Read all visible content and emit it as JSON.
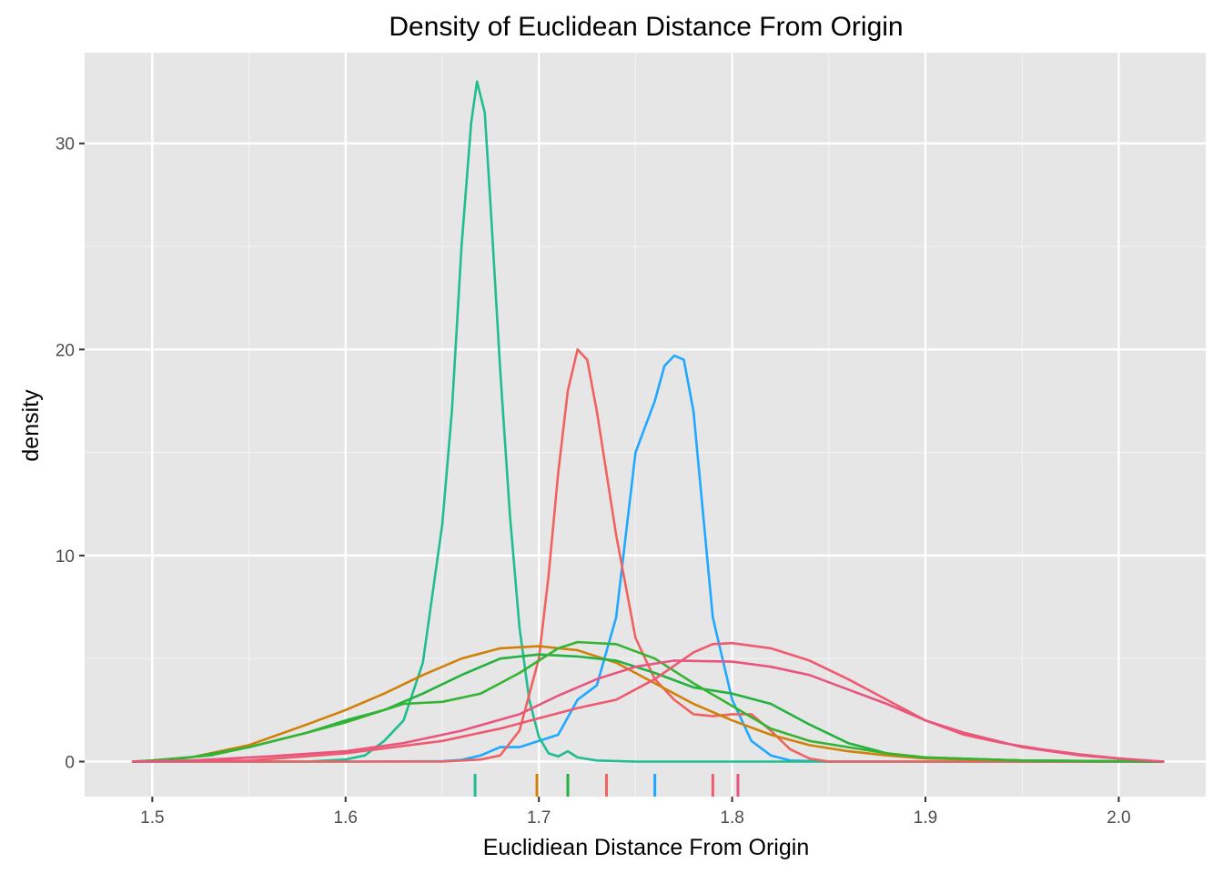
{
  "chart_data": {
    "type": "line",
    "title": "Density of Euclidean Distance From Origin",
    "xlabel": "Euclidiean Distance From Origin",
    "ylabel": "density",
    "xlim": [
      1.465,
      2.045
    ],
    "ylim": [
      -1.7,
      34.4
    ],
    "x_ticks": [
      1.5,
      1.6,
      1.7,
      1.8,
      1.9,
      2.0
    ],
    "y_ticks": [
      0,
      10,
      20,
      30
    ],
    "x_tick_labels": [
      "1.5",
      "1.6",
      "1.7",
      "1.8",
      "1.9",
      "2.0"
    ],
    "y_tick_labels": [
      "0",
      "10",
      "20",
      "30"
    ],
    "grid": true,
    "legend": "none",
    "series": [
      {
        "color": "#1fa8ff",
        "points": [
          [
            1.49,
            0
          ],
          [
            1.6,
            0
          ],
          [
            1.65,
            0.02
          ],
          [
            1.66,
            0.08
          ],
          [
            1.67,
            0.3
          ],
          [
            1.68,
            0.7
          ],
          [
            1.69,
            0.7
          ],
          [
            1.7,
            1.0
          ],
          [
            1.71,
            1.3
          ],
          [
            1.72,
            3.0
          ],
          [
            1.73,
            3.7
          ],
          [
            1.74,
            7
          ],
          [
            1.75,
            15
          ],
          [
            1.76,
            17.5
          ],
          [
            1.765,
            19.2
          ],
          [
            1.77,
            19.7
          ],
          [
            1.775,
            19.5
          ],
          [
            1.78,
            17
          ],
          [
            1.785,
            12
          ],
          [
            1.79,
            7
          ],
          [
            1.8,
            3
          ],
          [
            1.81,
            1
          ],
          [
            1.82,
            0.3
          ],
          [
            1.83,
            0.05
          ],
          [
            1.85,
            0
          ],
          [
            2.023,
            0
          ]
        ]
      },
      {
        "color": "#1fbd8f",
        "points": [
          [
            1.49,
            0
          ],
          [
            1.58,
            0
          ],
          [
            1.6,
            0.1
          ],
          [
            1.61,
            0.3
          ],
          [
            1.62,
            1.0
          ],
          [
            1.63,
            2.0
          ],
          [
            1.64,
            4.8
          ],
          [
            1.65,
            11.5
          ],
          [
            1.655,
            17
          ],
          [
            1.66,
            25
          ],
          [
            1.665,
            31
          ],
          [
            1.668,
            33
          ],
          [
            1.672,
            31.5
          ],
          [
            1.675,
            27
          ],
          [
            1.68,
            19
          ],
          [
            1.685,
            12
          ],
          [
            1.69,
            6.5
          ],
          [
            1.695,
            3
          ],
          [
            1.7,
            1.2
          ],
          [
            1.705,
            0.4
          ],
          [
            1.71,
            0.25
          ],
          [
            1.715,
            0.5
          ],
          [
            1.72,
            0.2
          ],
          [
            1.73,
            0.05
          ],
          [
            1.75,
            0
          ],
          [
            2.023,
            0
          ]
        ]
      },
      {
        "color": "#f0625f",
        "points": [
          [
            1.49,
            0
          ],
          [
            1.65,
            0
          ],
          [
            1.67,
            0.1
          ],
          [
            1.68,
            0.3
          ],
          [
            1.69,
            1.5
          ],
          [
            1.7,
            5
          ],
          [
            1.705,
            9
          ],
          [
            1.71,
            14
          ],
          [
            1.715,
            18
          ],
          [
            1.72,
            20
          ],
          [
            1.725,
            19.5
          ],
          [
            1.73,
            17
          ],
          [
            1.74,
            11
          ],
          [
            1.75,
            6
          ],
          [
            1.76,
            4
          ],
          [
            1.77,
            3
          ],
          [
            1.78,
            2.3
          ],
          [
            1.79,
            2.2
          ],
          [
            1.8,
            2.3
          ],
          [
            1.81,
            2.3
          ],
          [
            1.82,
            1.5
          ],
          [
            1.83,
            0.6
          ],
          [
            1.84,
            0.15
          ],
          [
            1.85,
            0
          ],
          [
            2.023,
            0
          ]
        ]
      },
      {
        "color": "#d1810a",
        "points": [
          [
            1.49,
            0
          ],
          [
            1.5,
            0.05
          ],
          [
            1.52,
            0.2
          ],
          [
            1.55,
            0.8
          ],
          [
            1.58,
            1.8
          ],
          [
            1.6,
            2.5
          ],
          [
            1.62,
            3.3
          ],
          [
            1.64,
            4.2
          ],
          [
            1.66,
            5.0
          ],
          [
            1.68,
            5.5
          ],
          [
            1.7,
            5.6
          ],
          [
            1.72,
            5.4
          ],
          [
            1.74,
            4.8
          ],
          [
            1.76,
            3.8
          ],
          [
            1.78,
            2.8
          ],
          [
            1.8,
            2.0
          ],
          [
            1.82,
            1.3
          ],
          [
            1.84,
            0.8
          ],
          [
            1.86,
            0.5
          ],
          [
            1.88,
            0.3
          ],
          [
            1.9,
            0.15
          ],
          [
            1.95,
            0.05
          ],
          [
            2.023,
            0
          ]
        ]
      },
      {
        "color": "#23b23f",
        "points": [
          [
            1.49,
            0
          ],
          [
            1.5,
            0.05
          ],
          [
            1.52,
            0.2
          ],
          [
            1.55,
            0.7
          ],
          [
            1.58,
            1.4
          ],
          [
            1.6,
            2.0
          ],
          [
            1.62,
            2.5
          ],
          [
            1.64,
            3.3
          ],
          [
            1.66,
            4.2
          ],
          [
            1.68,
            5.0
          ],
          [
            1.7,
            5.2
          ],
          [
            1.72,
            5.1
          ],
          [
            1.74,
            4.9
          ],
          [
            1.76,
            4.3
          ],
          [
            1.78,
            3.6
          ],
          [
            1.8,
            3.3
          ],
          [
            1.82,
            2.8
          ],
          [
            1.84,
            1.8
          ],
          [
            1.86,
            0.9
          ],
          [
            1.88,
            0.4
          ],
          [
            1.9,
            0.2
          ],
          [
            1.95,
            0.05
          ],
          [
            2.023,
            0
          ]
        ]
      },
      {
        "color": "#35b432",
        "points": [
          [
            1.49,
            0
          ],
          [
            1.5,
            0.05
          ],
          [
            1.53,
            0.3
          ],
          [
            1.55,
            0.7
          ],
          [
            1.58,
            1.4
          ],
          [
            1.6,
            1.9
          ],
          [
            1.62,
            2.5
          ],
          [
            1.63,
            2.8
          ],
          [
            1.65,
            2.9
          ],
          [
            1.67,
            3.3
          ],
          [
            1.69,
            4.3
          ],
          [
            1.71,
            5.5
          ],
          [
            1.72,
            5.8
          ],
          [
            1.74,
            5.7
          ],
          [
            1.76,
            5.0
          ],
          [
            1.78,
            3.8
          ],
          [
            1.8,
            2.7
          ],
          [
            1.82,
            1.6
          ],
          [
            1.84,
            1.0
          ],
          [
            1.86,
            0.7
          ],
          [
            1.88,
            0.4
          ],
          [
            1.9,
            0.2
          ],
          [
            1.95,
            0.05
          ],
          [
            2.023,
            0
          ]
        ]
      },
      {
        "color": "#ef5a6f",
        "points": [
          [
            1.49,
            0
          ],
          [
            1.55,
            0.05
          ],
          [
            1.6,
            0.4
          ],
          [
            1.65,
            1.0
          ],
          [
            1.68,
            1.6
          ],
          [
            1.7,
            2.1
          ],
          [
            1.72,
            2.6
          ],
          [
            1.74,
            3.0
          ],
          [
            1.76,
            4.0
          ],
          [
            1.78,
            5.3
          ],
          [
            1.79,
            5.7
          ],
          [
            1.8,
            5.75
          ],
          [
            1.82,
            5.5
          ],
          [
            1.84,
            4.9
          ],
          [
            1.86,
            4.0
          ],
          [
            1.88,
            3.0
          ],
          [
            1.9,
            2.0
          ],
          [
            1.92,
            1.3
          ],
          [
            1.94,
            0.9
          ],
          [
            1.96,
            0.6
          ],
          [
            1.98,
            0.35
          ],
          [
            2.0,
            0.15
          ],
          [
            2.023,
            0
          ]
        ]
      },
      {
        "color": "#e8557e",
        "points": [
          [
            1.49,
            0
          ],
          [
            1.52,
            0.05
          ],
          [
            1.56,
            0.25
          ],
          [
            1.6,
            0.5
          ],
          [
            1.63,
            0.9
          ],
          [
            1.66,
            1.5
          ],
          [
            1.69,
            2.3
          ],
          [
            1.71,
            3.2
          ],
          [
            1.73,
            4.0
          ],
          [
            1.75,
            4.6
          ],
          [
            1.77,
            4.9
          ],
          [
            1.8,
            4.85
          ],
          [
            1.82,
            4.6
          ],
          [
            1.84,
            4.2
          ],
          [
            1.86,
            3.5
          ],
          [
            1.88,
            2.8
          ],
          [
            1.9,
            2.0
          ],
          [
            1.92,
            1.4
          ],
          [
            1.95,
            0.7
          ],
          [
            1.98,
            0.3
          ],
          [
            2.0,
            0.15
          ],
          [
            2.023,
            0
          ]
        ]
      }
    ],
    "rug": [
      {
        "x": 1.667,
        "color": "#1fbd8f"
      },
      {
        "x": 1.699,
        "color": "#d1810a"
      },
      {
        "x": 1.715,
        "color": "#23b23f"
      },
      {
        "x": 1.735,
        "color": "#f0625f"
      },
      {
        "x": 1.76,
        "color": "#1fa8ff"
      },
      {
        "x": 1.79,
        "color": "#ef5a6f"
      },
      {
        "x": 1.803,
        "color": "#e8557e"
      }
    ]
  }
}
